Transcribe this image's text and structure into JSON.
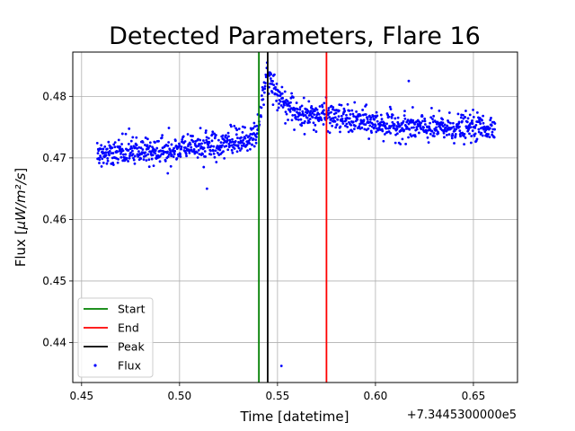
{
  "chart_data": {
    "type": "scatter",
    "title": "Detected Parameters, Flare 16",
    "xlabel": "Time [datetime]",
    "ylabel_prefix": "Flux [",
    "ylabel_math": "μW/m²/s",
    "ylabel_suffix": "]",
    "x_offset_label": "+7.3445300000e5",
    "xlim": [
      0.4455,
      0.6725
    ],
    "ylim": [
      0.4335,
      0.4872
    ],
    "xticks": [
      0.45,
      0.5,
      0.55,
      0.6,
      0.65
    ],
    "xtick_labels": [
      "0.45",
      "0.50",
      "0.55",
      "0.60",
      "0.65"
    ],
    "yticks": [
      0.44,
      0.45,
      0.46,
      0.47,
      0.48
    ],
    "ytick_labels": [
      "0.44",
      "0.45",
      "0.46",
      "0.47",
      "0.48"
    ],
    "grid": true,
    "legend_position": "lower-left",
    "markers": [
      {
        "name": "Start",
        "x": 0.5405,
        "color": "#008000"
      },
      {
        "name": "End",
        "x": 0.575,
        "color": "#ff0000"
      },
      {
        "name": "Peak",
        "x": 0.545,
        "color": "#000000"
      }
    ],
    "scatter_series": {
      "name": "Flux",
      "color": "#0000ff",
      "x_start": 0.458,
      "x_end": 0.661,
      "approx_points": 1200,
      "trend": [
        {
          "x": 0.458,
          "y": 0.4705
        },
        {
          "x": 0.48,
          "y": 0.471
        },
        {
          "x": 0.5,
          "y": 0.4715
        },
        {
          "x": 0.52,
          "y": 0.4722
        },
        {
          "x": 0.535,
          "y": 0.473
        },
        {
          "x": 0.54,
          "y": 0.4745
        },
        {
          "x": 0.5425,
          "y": 0.48
        },
        {
          "x": 0.5445,
          "y": 0.484
        },
        {
          "x": 0.547,
          "y": 0.482
        },
        {
          "x": 0.552,
          "y": 0.4795
        },
        {
          "x": 0.558,
          "y": 0.4775
        },
        {
          "x": 0.565,
          "y": 0.477
        },
        {
          "x": 0.575,
          "y": 0.4768
        },
        {
          "x": 0.59,
          "y": 0.476
        },
        {
          "x": 0.61,
          "y": 0.4752
        },
        {
          "x": 0.63,
          "y": 0.4748
        },
        {
          "x": 0.661,
          "y": 0.475
        }
      ],
      "scatter_spread": 0.0011,
      "outliers": [
        {
          "x": 0.552,
          "y": 0.4362
        },
        {
          "x": 0.617,
          "y": 0.4825
        },
        {
          "x": 0.514,
          "y": 0.465
        },
        {
          "x": 0.494,
          "y": 0.4675
        }
      ]
    }
  }
}
